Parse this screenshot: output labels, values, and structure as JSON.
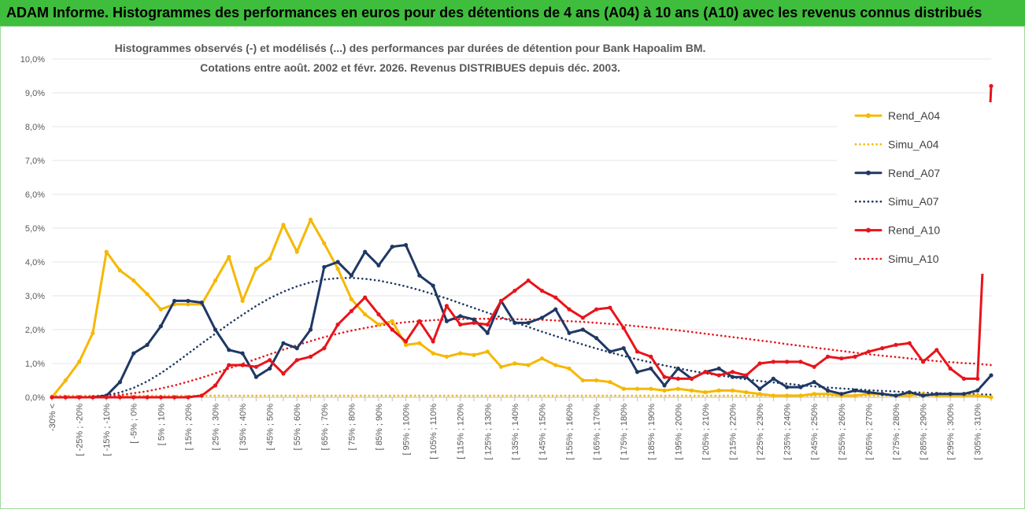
{
  "header": {
    "title": "ADAM Informe. Histogrammes des performances en euros pour des détentions de 4 ans (A04) à 10 ans (A10) avec les revenus connus distribués"
  },
  "chart_data": {
    "type": "line",
    "title_line1": "Histogrammes observés (-) et modélisés (...) des performances par durées de détention pour Bank Hapoalim BM.",
    "title_line2": "Cotations entre août. 2002 et févr. 2026. Revenus DISTRIBUES depuis déc. 2003.",
    "xlabel": "",
    "ylabel": "",
    "ylim": [
      0,
      10
    ],
    "y_ticks": [
      "0,0%",
      "1,0%",
      "2,0%",
      "3,0%",
      "4,0%",
      "5,0%",
      "6,0%",
      "7,0%",
      "8,0%",
      "9,0%",
      "10,0%"
    ],
    "x_tick_labels": [
      "-30% <",
      "[ -25% ; -20%",
      "[ -15% ; -10%",
      "[ -5% ; 0%",
      "[ 5% ; 10%",
      "[ 15% ; 20%",
      "[ 25% ; 30%",
      "[ 35% ; 40%",
      "[ 45% ; 50%",
      "[ 55% ; 60%",
      "[ 65% ; 70%",
      "[ 75% ; 80%",
      "[ 85% ; 90%",
      "[ 95% ; 100%",
      "[ 105% ; 110%",
      "[ 115% ; 120%",
      "[ 125% ; 130%",
      "[ 135% ; 140%",
      "[ 145% ; 150%",
      "[ 155% ; 160%",
      "[ 165% ; 170%",
      "[ 175% ; 180%",
      "[ 185% ; 190%",
      "[ 195% ; 200%",
      "[ 205% ; 210%",
      "[ 215% ; 220%",
      "[ 225% ; 230%",
      "[ 235% ; 240%",
      "[ 245% ; 250%",
      "[ 255% ; 260%",
      "[ 265% ; 270%",
      "[ 275% ; 280%",
      "[ 285% ; 290%",
      "[ 295% ; 300%",
      "[ 305% ; 310%"
    ],
    "n_bins": 70,
    "legend_position": "right",
    "series": [
      {
        "name": "Rend_A04",
        "color": "#f5b800",
        "style": "solid",
        "markers": true,
        "values": [
          0,
          0.5,
          1.05,
          1.9,
          4.3,
          3.75,
          3.45,
          3.05,
          2.6,
          2.75,
          2.75,
          2.75,
          3.45,
          4.15,
          2.85,
          3.8,
          4.1,
          5.1,
          4.3,
          5.25,
          4.55,
          3.8,
          2.9,
          2.45,
          2.15,
          2.25,
          1.55,
          1.6,
          1.3,
          1.2,
          1.3,
          1.25,
          1.35,
          0.9,
          1.0,
          0.95,
          1.15,
          0.95,
          0.85,
          0.5,
          0.5,
          0.45,
          0.25,
          0.25,
          0.25,
          0.2,
          0.25,
          0.2,
          0.15,
          0.2,
          0.2,
          0.15,
          0.1,
          0.05,
          0.05,
          0.05,
          0.1,
          0.1,
          0.05,
          0.05,
          0.1,
          0.1,
          0.05,
          0.05,
          0.1,
          0.05,
          0.05,
          0.05,
          0.05,
          0.0
        ]
      },
      {
        "name": "Simu_A04",
        "color": "#f5b800",
        "style": "dotted",
        "markers": false,
        "values": [
          0.05,
          0.05,
          0.05,
          0.05,
          0.05,
          0.05,
          0.05,
          0.05,
          0.05,
          0.05,
          0.05,
          0.05,
          0.05,
          0.05,
          0.05,
          0.05,
          0.05,
          0.05,
          0.05,
          0.05,
          0.05,
          0.05,
          0.05,
          0.05,
          0.05,
          0.05,
          0.05,
          0.05,
          0.05,
          0.05,
          0.05,
          0.05,
          0.05,
          0.05,
          0.05,
          0.05,
          0.05,
          0.05,
          0.05,
          0.05,
          0.05,
          0.05,
          0.05,
          0.05,
          0.05,
          0.05,
          0.05,
          0.05,
          0.05,
          0.05,
          0.05,
          0.05,
          0.05,
          0.05,
          0.05,
          0.05,
          0.05,
          0.05,
          0.05,
          0.05,
          0.05,
          0.05,
          0.05,
          0.05,
          0.05,
          0.05,
          0.05,
          0.05,
          0.05,
          0.05
        ]
      },
      {
        "name": "Rend_A07",
        "color": "#1f3864",
        "style": "solid",
        "markers": true,
        "values": [
          0,
          0,
          0,
          0,
          0.05,
          0.45,
          1.3,
          1.55,
          2.1,
          2.85,
          2.85,
          2.8,
          2.0,
          1.4,
          1.3,
          0.6,
          0.85,
          1.6,
          1.45,
          2.0,
          3.85,
          4.0,
          3.6,
          4.3,
          3.9,
          4.45,
          4.5,
          3.6,
          3.3,
          2.25,
          2.4,
          2.3,
          1.9,
          2.85,
          2.2,
          2.2,
          2.35,
          2.6,
          1.9,
          2.0,
          1.75,
          1.35,
          1.45,
          0.75,
          0.85,
          0.35,
          0.85,
          0.55,
          0.75,
          0.85,
          0.6,
          0.6,
          0.25,
          0.55,
          0.3,
          0.3,
          0.45,
          0.2,
          0.1,
          0.2,
          0.15,
          0.1,
          0.05,
          0.15,
          0.05,
          0.1,
          0.1,
          0.1,
          0.2,
          0.65
        ]
      },
      {
        "name": "Simu_A07",
        "color": "#1f3864",
        "style": "dotted",
        "markers": false,
        "values": [
          0,
          0,
          0.01,
          0.02,
          0.06,
          0.14,
          0.28,
          0.47,
          0.71,
          0.99,
          1.29,
          1.59,
          1.88,
          2.17,
          2.44,
          2.7,
          2.93,
          3.12,
          3.28,
          3.4,
          3.48,
          3.52,
          3.53,
          3.5,
          3.45,
          3.37,
          3.28,
          3.17,
          3.05,
          2.92,
          2.78,
          2.64,
          2.5,
          2.36,
          2.22,
          2.08,
          1.94,
          1.81,
          1.68,
          1.56,
          1.44,
          1.33,
          1.22,
          1.12,
          1.03,
          0.94,
          0.86,
          0.78,
          0.71,
          0.65,
          0.59,
          0.53,
          0.48,
          0.44,
          0.4,
          0.36,
          0.32,
          0.29,
          0.26,
          0.24,
          0.21,
          0.19,
          0.17,
          0.15,
          0.14,
          0.12,
          0.11,
          0.1,
          0.09,
          0.08
        ]
      },
      {
        "name": "Rend_A10",
        "color": "#e8141b",
        "style": "solid",
        "markers": true,
        "values": [
          0,
          0,
          0,
          0,
          0,
          0,
          0,
          0,
          0,
          0,
          0,
          0.05,
          0.35,
          0.95,
          0.95,
          0.9,
          1.1,
          0.7,
          1.1,
          1.2,
          1.45,
          2.15,
          2.55,
          2.95,
          2.45,
          2.0,
          1.65,
          2.25,
          1.65,
          2.7,
          2.15,
          2.2,
          2.15,
          2.85,
          3.15,
          3.45,
          3.15,
          2.95,
          2.6,
          2.35,
          2.6,
          2.65,
          2.05,
          1.35,
          1.2,
          0.6,
          0.55,
          0.55,
          0.75,
          0.65,
          0.75,
          0.65,
          1.0,
          1.05,
          1.05,
          1.05,
          0.9,
          1.2,
          1.15,
          1.2,
          1.35,
          1.45,
          1.55,
          1.6,
          1.05,
          1.4,
          0.85,
          0.55,
          0.55,
          9.2
        ]
      },
      {
        "name": "Simu_A10",
        "color": "#e8141b",
        "style": "dotted",
        "markers": false,
        "values": [
          0,
          0,
          0.01,
          0.02,
          0.04,
          0.07,
          0.12,
          0.18,
          0.26,
          0.35,
          0.46,
          0.58,
          0.71,
          0.85,
          0.99,
          1.13,
          1.27,
          1.41,
          1.54,
          1.66,
          1.78,
          1.88,
          1.97,
          2.05,
          2.12,
          2.17,
          2.22,
          2.25,
          2.28,
          2.3,
          2.31,
          2.32,
          2.32,
          2.32,
          2.31,
          2.3,
          2.29,
          2.27,
          2.25,
          2.23,
          2.2,
          2.17,
          2.14,
          2.1,
          2.06,
          2.02,
          1.98,
          1.93,
          1.88,
          1.83,
          1.78,
          1.73,
          1.68,
          1.63,
          1.57,
          1.52,
          1.47,
          1.42,
          1.37,
          1.32,
          1.27,
          1.23,
          1.19,
          1.15,
          1.11,
          1.07,
          1.04,
          1.01,
          0.99,
          0.95
        ]
      }
    ]
  }
}
